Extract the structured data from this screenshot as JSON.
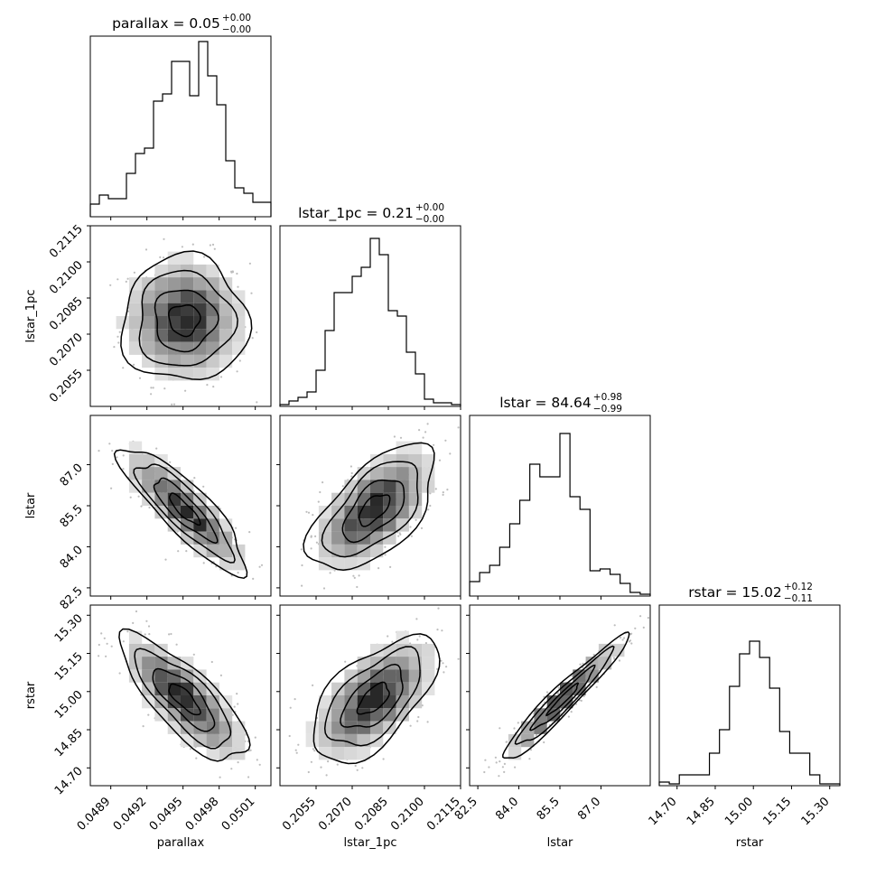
{
  "chart_data": {
    "type": "corner",
    "parameters": [
      {
        "name": "parallax",
        "label": "parallax",
        "range": [
          0.04873,
          0.05023
        ],
        "ticks": [
          0.0489,
          0.0492,
          0.0495,
          0.0498,
          0.0501
        ],
        "tick_labels": [
          "0.0489",
          "0.0492",
          "0.0495",
          "0.0498",
          "0.0501"
        ],
        "title": {
          "main": "parallax = 0.05",
          "sup": "+0.00",
          "sub": "−0.00"
        },
        "hist": [
          0.07,
          0.12,
          0.1,
          0.1,
          0.24,
          0.35,
          0.38,
          0.64,
          0.68,
          0.86,
          0.86,
          0.67,
          0.97,
          0.78,
          0.62,
          0.31,
          0.16,
          0.13,
          0.08,
          0.08
        ]
      },
      {
        "name": "lstar_1pc",
        "label": "lstar_1pc",
        "range": [
          0.204,
          0.2115
        ],
        "ticks": [
          0.2055,
          0.207,
          0.2085,
          0.21,
          0.2115
        ],
        "tick_labels": [
          "0.2055",
          "0.2070",
          "0.2085",
          "0.2100",
          "0.2115"
        ],
        "title": {
          "main": "lstar_1pc = 0.21",
          "sup": "+0.00",
          "sub": "−0.00"
        },
        "hist": [
          0.01,
          0.03,
          0.05,
          0.08,
          0.2,
          0.42,
          0.63,
          0.63,
          0.72,
          0.77,
          0.93,
          0.84,
          0.53,
          0.5,
          0.3,
          0.18,
          0.04,
          0.02,
          0.02,
          0.01
        ]
      },
      {
        "name": "lstar",
        "label": "lstar",
        "range": [
          82.2,
          88.8
        ],
        "ticks": [
          82.5,
          84.0,
          85.5,
          87.0
        ],
        "tick_labels": [
          "82.5",
          "84.0",
          "85.5",
          "87.0"
        ],
        "title": {
          "main": "lstar = 84.64",
          "sup": "+0.98",
          "sub": "−0.99"
        },
        "hist": [
          0.08,
          0.13,
          0.17,
          0.27,
          0.4,
          0.53,
          0.73,
          0.66,
          0.66,
          0.9,
          0.55,
          0.48,
          0.14,
          0.15,
          0.12,
          0.07,
          0.02,
          0.01
        ]
      },
      {
        "name": "rstar",
        "label": "rstar",
        "range": [
          14.63,
          15.34
        ],
        "ticks": [
          14.7,
          14.85,
          15.0,
          15.15,
          15.3
        ],
        "tick_labels": [
          "14.70",
          "14.85",
          "15.00",
          "15.15",
          "15.30"
        ],
        "title": {
          "main": "rstar = 15.02",
          "sup": "+0.12",
          "sub": "−0.11"
        },
        "hist": [
          0.02,
          0.01,
          0.06,
          0.06,
          0.06,
          0.18,
          0.31,
          0.55,
          0.73,
          0.8,
          0.71,
          0.54,
          0.3,
          0.18,
          0.18,
          0.06,
          0.01,
          0.01
        ]
      }
    ],
    "covariance_panels": [
      {
        "x": "parallax",
        "y": "lstar_1pc",
        "corr": 0.0
      },
      {
        "x": "parallax",
        "y": "lstar",
        "corr": -0.86
      },
      {
        "x": "lstar_1pc",
        "y": "lstar",
        "corr": 0.6
      },
      {
        "x": "parallax",
        "y": "rstar",
        "corr": -0.78
      },
      {
        "x": "lstar_1pc",
        "y": "rstar",
        "corr": 0.6
      },
      {
        "x": "lstar",
        "y": "rstar",
        "corr": 0.96
      }
    ]
  }
}
